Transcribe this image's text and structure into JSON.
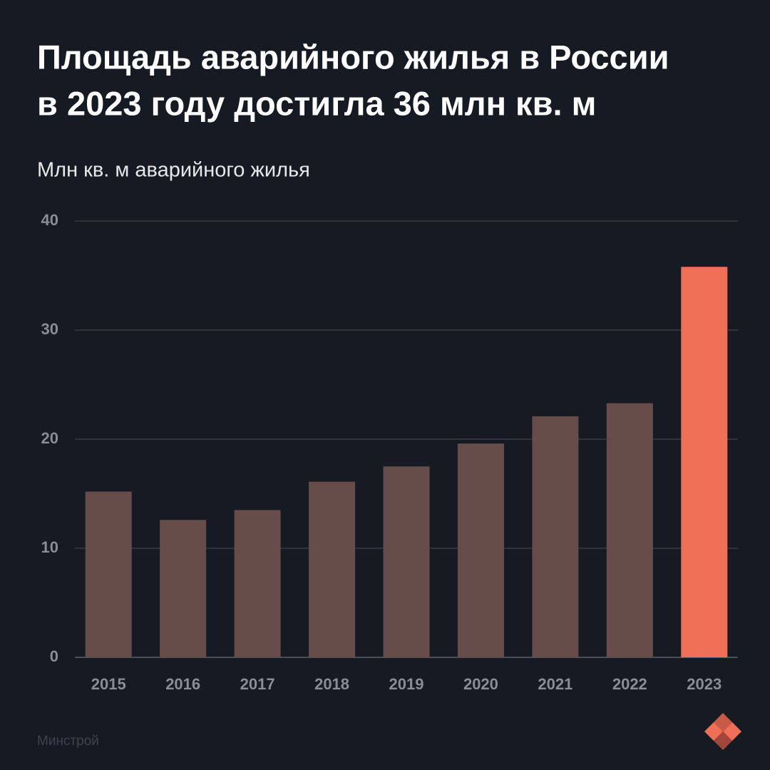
{
  "chart_data": {
    "type": "bar",
    "title": [
      "Площадь аварийного жилья в России",
      "в 2023 году достигла 36 млн кв. м"
    ],
    "subtitle": "Млн кв. м аварийного жилья",
    "source": "Минстрой",
    "categories": [
      "2015",
      "2016",
      "2017",
      "2018",
      "2019",
      "2020",
      "2021",
      "2022",
      "2023"
    ],
    "values": [
      15.2,
      12.6,
      13.5,
      16.1,
      17.5,
      19.6,
      22.1,
      23.3,
      35.8
    ],
    "colors": [
      "#664d4a",
      "#664d4a",
      "#664d4a",
      "#664d4a",
      "#664d4a",
      "#664d4a",
      "#664d4a",
      "#664d4a",
      "#f07057"
    ],
    "ylim": [
      0,
      40
    ],
    "yticks": [
      0,
      10,
      20,
      30,
      40
    ],
    "grid": true
  }
}
